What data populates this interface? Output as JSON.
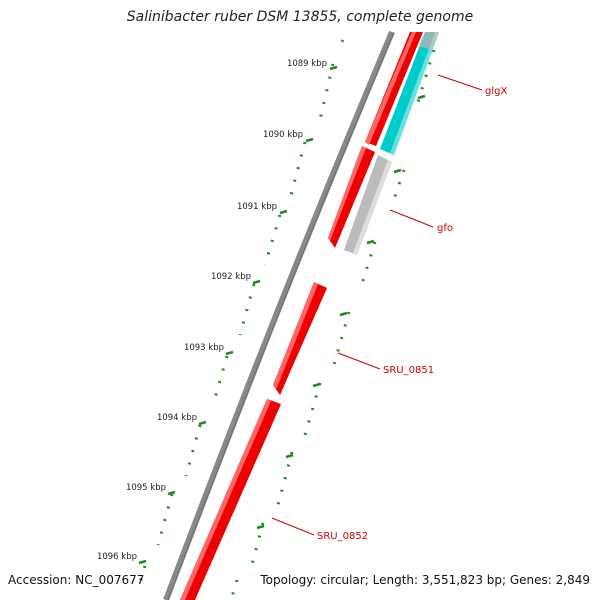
{
  "title": "Salinibacter ruber DSM 13855, complete genome",
  "ticks": [
    "1089 kbp",
    "1090 kbp",
    "1091 kbp",
    "1092 kbp",
    "1093 kbp",
    "1094 kbp",
    "1095 kbp",
    "1096 kbp"
  ],
  "genes": [
    {
      "name": "glgX",
      "strand": "reverse",
      "color": "#00cccc"
    },
    {
      "name": "gfo",
      "strand": "reverse",
      "color": "#bbbbbb"
    },
    {
      "name": "SRU_0851",
      "strand": "forward",
      "color": "#ff0000"
    },
    {
      "name": "SRU_0852",
      "strand": "forward",
      "color": "#ff0000"
    }
  ],
  "footer": {
    "accession": "Accession: NC_007677",
    "summary": "Topology: circular; Length: 3,551,823 bp; Genes: 2,849"
  },
  "colors": {
    "label_red": "#cc0000",
    "tick_green": "#228822",
    "backbone_gray": "#888888"
  }
}
